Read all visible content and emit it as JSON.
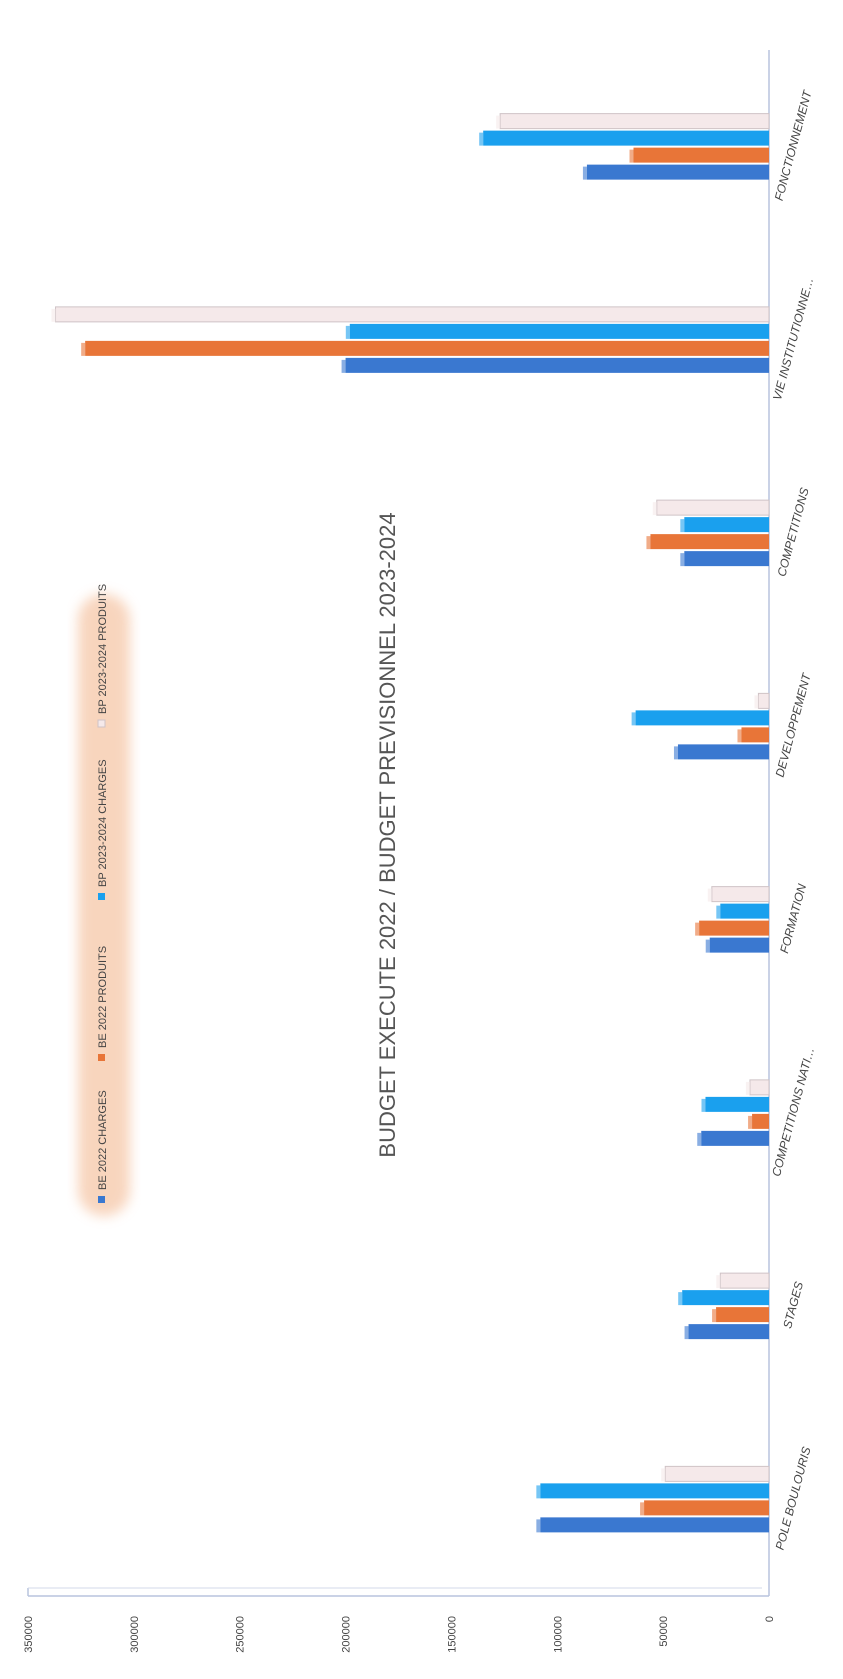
{
  "chart_data": {
    "type": "bar",
    "title": "BUDGET EXECUTE 2022  /  BUDGET PREVISIONNEL 2023-2024",
    "categories": [
      "POLE BOULOURIS",
      "STAGES",
      "COMPETITIONS NATIONALES",
      "FORMATION",
      "DEVELOPPEMENT",
      "COMPETITIONS",
      "VIE INSTITUTIONNELLE",
      "FONCTIONNEMENT"
    ],
    "category_labels": [
      "POLE BOULOURIS",
      "STAGES",
      "COMPETITIONS NATI…",
      "FORMATION",
      "DEVELOPPEMENT",
      "COMPETITIONS",
      "VIE INSTITUTIONNE…",
      "FONCTIONNEMENT"
    ],
    "series": [
      {
        "name": "BE 2022  CHARGES",
        "color": "#3a78d0",
        "values": [
          108000,
          38000,
          32000,
          28000,
          43000,
          40000,
          200000,
          86000
        ]
      },
      {
        "name": "BE 2022  PRODUITS",
        "color": "#e87538",
        "values": [
          59000,
          25000,
          8000,
          33000,
          13000,
          56000,
          323000,
          64000
        ]
      },
      {
        "name": "BP 2023-2024  CHARGES",
        "color": "#1aa0ee",
        "values": [
          108000,
          41000,
          30000,
          23000,
          63000,
          40000,
          198000,
          135000
        ]
      },
      {
        "name": "BP 2023-2024  PRODUITS",
        "color": "#f5e9ea",
        "values": [
          49000,
          23000,
          9000,
          27000,
          5000,
          53000,
          337000,
          127000
        ]
      }
    ],
    "y_ticks": [
      "0",
      "50000",
      "100000",
      "150000",
      "200000",
      "250000",
      "300000",
      "350000"
    ],
    "ylim": [
      0,
      350000
    ],
    "legend_position": "top",
    "grid": false
  }
}
